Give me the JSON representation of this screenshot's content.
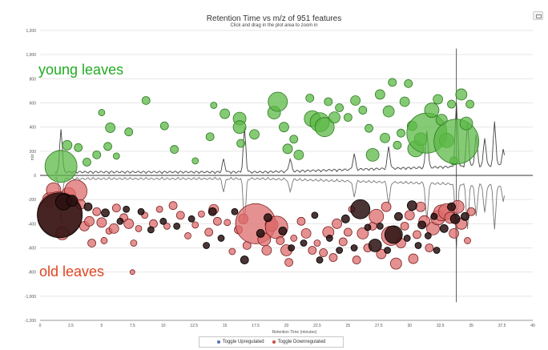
{
  "header": {
    "title": "Retention Time vs  m/z  of 951 features",
    "subtitle": "Click and drag in the plot area to zoom in"
  },
  "annotations": {
    "young": "young leaves",
    "old": "old leaves"
  },
  "legend": {
    "up_label": "Toggle Upregulated",
    "down_label": "Toggle Downregulated"
  },
  "colors": {
    "up": "#55b040",
    "down": "#d85a5a",
    "dark": "#301818",
    "legend_up": "#5a6fb8",
    "legend_down": "#d04a3a"
  },
  "chart_data": {
    "type": "scatter",
    "title": "Retention Time vs  m/z  of 951 features",
    "subtitle": "Click and drag in the plot area to zoom in",
    "xlabel": "Retention Time (minutes)",
    "ylabel": "m/z",
    "xlim": [
      0,
      40
    ],
    "ylim": [
      -1200,
      1200
    ],
    "xticks": [
      0,
      2.5,
      5,
      7.5,
      10,
      12.5,
      15,
      17.5,
      20,
      22.5,
      25,
      27.5,
      30,
      32.5,
      35,
      37.5,
      40
    ],
    "xtick_labels": [
      "0",
      "2.5",
      "5",
      "7.5",
      "10",
      "12.5",
      "15",
      "17.5",
      "20",
      "22.5",
      "25",
      "27.5",
      "30",
      "32.5",
      "35",
      "37.5",
      "40"
    ],
    "yticks": [
      1200,
      1000,
      800,
      600,
      400,
      200,
      0,
      -200,
      -400,
      -600,
      -800,
      -1000,
      -1200
    ],
    "ytick_labels": [
      "1,200",
      "1,000",
      "800",
      "600",
      "400",
      "200",
      "0",
      "-200",
      "-400",
      "-600",
      "-800",
      "-1,000",
      "-1,200"
    ],
    "grid": true,
    "series": [
      {
        "name": "Toggle Upregulated",
        "points": [
          [
            1.7,
            75,
            20
          ],
          [
            2.2,
            250,
            6
          ],
          [
            3.1,
            230,
            5
          ],
          [
            3.8,
            110,
            5
          ],
          [
            4.6,
            170,
            5
          ],
          [
            5.0,
            520,
            4
          ],
          [
            5.5,
            240,
            5
          ],
          [
            5.7,
            395,
            6
          ],
          [
            6.2,
            160,
            4
          ],
          [
            7.2,
            360,
            5
          ],
          [
            8.6,
            620,
            5
          ],
          [
            10.1,
            410,
            5
          ],
          [
            10.9,
            215,
            5
          ],
          [
            12.6,
            120,
            4
          ],
          [
            13.8,
            320,
            5
          ],
          [
            14.1,
            580,
            4
          ],
          [
            15.0,
            510,
            6
          ],
          [
            16.2,
            470,
            8
          ],
          [
            16.2,
            400,
            8
          ],
          [
            16.3,
            265,
            5
          ],
          [
            17.4,
            340,
            6
          ],
          [
            19.0,
            520,
            8
          ],
          [
            19.3,
            610,
            12
          ],
          [
            19.8,
            400,
            6
          ],
          [
            20.1,
            220,
            6
          ],
          [
            20.6,
            300,
            5
          ],
          [
            21.0,
            170,
            6
          ],
          [
            21.9,
            640,
            5
          ],
          [
            22.1,
            470,
            10
          ],
          [
            22.7,
            440,
            12
          ],
          [
            23.1,
            400,
            12
          ],
          [
            23.4,
            610,
            5
          ],
          [
            23.9,
            480,
            7
          ],
          [
            24.3,
            560,
            5
          ],
          [
            25.0,
            480,
            5
          ],
          [
            25.6,
            620,
            6
          ],
          [
            26.2,
            540,
            5
          ],
          [
            26.7,
            390,
            5
          ],
          [
            27.0,
            170,
            8
          ],
          [
            27.6,
            670,
            6
          ],
          [
            28.0,
            310,
            6
          ],
          [
            28.3,
            530,
            7
          ],
          [
            28.6,
            770,
            5
          ],
          [
            29.0,
            250,
            5
          ],
          [
            29.3,
            350,
            5
          ],
          [
            29.6,
            610,
            6
          ],
          [
            29.9,
            760,
            5
          ],
          [
            30.2,
            410,
            6
          ],
          [
            30.5,
            220,
            10
          ],
          [
            30.9,
            300,
            8
          ],
          [
            31.4,
            350,
            25
          ],
          [
            31.8,
            540,
            9
          ],
          [
            32.3,
            630,
            6
          ],
          [
            32.6,
            460,
            7
          ],
          [
            33.0,
            290,
            9
          ],
          [
            33.4,
            590,
            5
          ],
          [
            33.6,
            120,
            5
          ],
          [
            33.8,
            280,
            28
          ],
          [
            34.2,
            670,
            7
          ],
          [
            34.6,
            430,
            8
          ],
          [
            34.9,
            590,
            5
          ]
        ]
      },
      {
        "name": "Toggle Downregulated",
        "points": [
          [
            0.8,
            -200,
            9
          ],
          [
            1.1,
            -120,
            9
          ],
          [
            1.6,
            -320,
            28
          ],
          [
            1.8,
            -480,
            8
          ],
          [
            2.3,
            -160,
            9
          ],
          [
            2.9,
            -130,
            14
          ],
          [
            3.3,
            -240,
            6
          ],
          [
            3.6,
            -420,
            6
          ],
          [
            4.0,
            -380,
            6
          ],
          [
            4.2,
            -560,
            5
          ],
          [
            4.6,
            -300,
            5
          ],
          [
            5.0,
            -390,
            6
          ],
          [
            5.2,
            -540,
            4
          ],
          [
            5.6,
            -460,
            4
          ],
          [
            6.0,
            -440,
            6
          ],
          [
            6.2,
            -270,
            5
          ],
          [
            6.8,
            -350,
            5
          ],
          [
            7.2,
            -400,
            6
          ],
          [
            7.6,
            -560,
            4
          ],
          [
            7.5,
            -800,
            3
          ],
          [
            8.0,
            -440,
            4
          ],
          [
            8.5,
            -330,
            4
          ],
          [
            9.2,
            -400,
            5
          ],
          [
            9.7,
            -280,
            4
          ],
          [
            10.3,
            -420,
            4
          ],
          [
            10.8,
            -250,
            5
          ],
          [
            11.4,
            -330,
            5
          ],
          [
            12.0,
            -500,
            4
          ],
          [
            12.6,
            -410,
            4
          ],
          [
            13.1,
            -320,
            4
          ],
          [
            13.7,
            -470,
            5
          ],
          [
            14.1,
            -280,
            6
          ],
          [
            14.4,
            -380,
            5
          ],
          [
            15.2,
            -390,
            4
          ],
          [
            15.6,
            -630,
            4
          ],
          [
            16.1,
            -450,
            5
          ],
          [
            16.5,
            -360,
            6
          ],
          [
            16.8,
            -580,
            5
          ],
          [
            17.5,
            -400,
            25
          ],
          [
            18.2,
            -530,
            8
          ],
          [
            18.4,
            -620,
            6
          ],
          [
            18.8,
            -410,
            8
          ],
          [
            19.2,
            -430,
            14
          ],
          [
            19.5,
            -540,
            5
          ],
          [
            20.0,
            -620,
            7
          ],
          [
            20.2,
            -720,
            5
          ],
          [
            20.6,
            -520,
            4
          ],
          [
            21.2,
            -380,
            5
          ],
          [
            21.6,
            -480,
            6
          ],
          [
            22.1,
            -620,
            5
          ],
          [
            22.5,
            -560,
            4
          ],
          [
            23.0,
            -640,
            5
          ],
          [
            23.4,
            -470,
            7
          ],
          [
            23.8,
            -680,
            5
          ],
          [
            24.1,
            -400,
            6
          ],
          [
            24.6,
            -550,
            5
          ],
          [
            25.0,
            -470,
            5
          ],
          [
            25.3,
            -280,
            4
          ],
          [
            25.7,
            -700,
            5
          ],
          [
            26.2,
            -480,
            7
          ],
          [
            26.6,
            -600,
            5
          ],
          [
            27.0,
            -420,
            5
          ],
          [
            27.3,
            -340,
            9
          ],
          [
            27.7,
            -650,
            6
          ],
          [
            28.1,
            -260,
            6
          ],
          [
            28.5,
            -500,
            12
          ],
          [
            28.9,
            -730,
            7
          ],
          [
            29.3,
            -560,
            6
          ],
          [
            29.6,
            -420,
            5
          ],
          [
            30.0,
            -330,
            6
          ],
          [
            30.3,
            -690,
            6
          ],
          [
            30.6,
            -490,
            5
          ],
          [
            30.9,
            -260,
            6
          ],
          [
            31.2,
            -380,
            7
          ],
          [
            31.6,
            -600,
            5
          ],
          [
            31.9,
            -440,
            8
          ],
          [
            32.3,
            -350,
            9
          ],
          [
            32.6,
            -310,
            10
          ],
          [
            33.0,
            -300,
            10
          ],
          [
            33.3,
            -350,
            7
          ],
          [
            33.6,
            -480,
            6
          ],
          [
            33.9,
            -260,
            8
          ],
          [
            34.2,
            -400,
            7
          ],
          [
            34.7,
            -540,
            4
          ],
          [
            35.0,
            -300,
            5
          ]
        ]
      },
      {
        "name": "",
        "points": [
          [
            1.6,
            -330,
            28
          ],
          [
            1.9,
            -220,
            10
          ],
          [
            2.6,
            -210,
            7
          ],
          [
            3.9,
            -260,
            5
          ],
          [
            5.3,
            -310,
            5
          ],
          [
            6.5,
            -380,
            4
          ],
          [
            7.0,
            -280,
            4
          ],
          [
            8.2,
            -300,
            4
          ],
          [
            9.0,
            -450,
            4
          ],
          [
            10.0,
            -380,
            4
          ],
          [
            11.1,
            -420,
            4
          ],
          [
            12.3,
            -360,
            4
          ],
          [
            13.5,
            -580,
            4
          ],
          [
            14.0,
            -300,
            5
          ],
          [
            14.7,
            -520,
            4
          ],
          [
            15.8,
            -300,
            4
          ],
          [
            16.6,
            -700,
            5
          ],
          [
            17.9,
            -480,
            5
          ],
          [
            18.5,
            -350,
            5
          ],
          [
            19.7,
            -460,
            5
          ],
          [
            20.4,
            -600,
            4
          ],
          [
            21.4,
            -560,
            4
          ],
          [
            22.3,
            -330,
            4
          ],
          [
            22.7,
            -700,
            4
          ],
          [
            23.5,
            -520,
            4
          ],
          [
            24.3,
            -620,
            4
          ],
          [
            24.8,
            -360,
            5
          ],
          [
            25.5,
            -600,
            4
          ],
          [
            26.0,
            -280,
            12
          ],
          [
            26.6,
            -430,
            4
          ],
          [
            27.2,
            -580,
            8
          ],
          [
            27.6,
            -420,
            4
          ],
          [
            28.2,
            -620,
            4
          ],
          [
            28.7,
            -490,
            11
          ],
          [
            29.1,
            -340,
            5
          ],
          [
            29.8,
            -520,
            4
          ],
          [
            30.2,
            -250,
            6
          ],
          [
            30.7,
            -580,
            4
          ],
          [
            31.0,
            -410,
            5
          ],
          [
            31.5,
            -500,
            4
          ],
          [
            32.0,
            -340,
            4
          ],
          [
            32.2,
            -620,
            4
          ],
          [
            32.8,
            -440,
            5
          ],
          [
            33.4,
            -260,
            5
          ],
          [
            33.7,
            -360,
            6
          ],
          [
            34.5,
            -340,
            5
          ]
        ]
      }
    ],
    "legend": [
      "Toggle Upregulated",
      "Toggle Downregulated"
    ],
    "legend_position": "bottom-center"
  }
}
